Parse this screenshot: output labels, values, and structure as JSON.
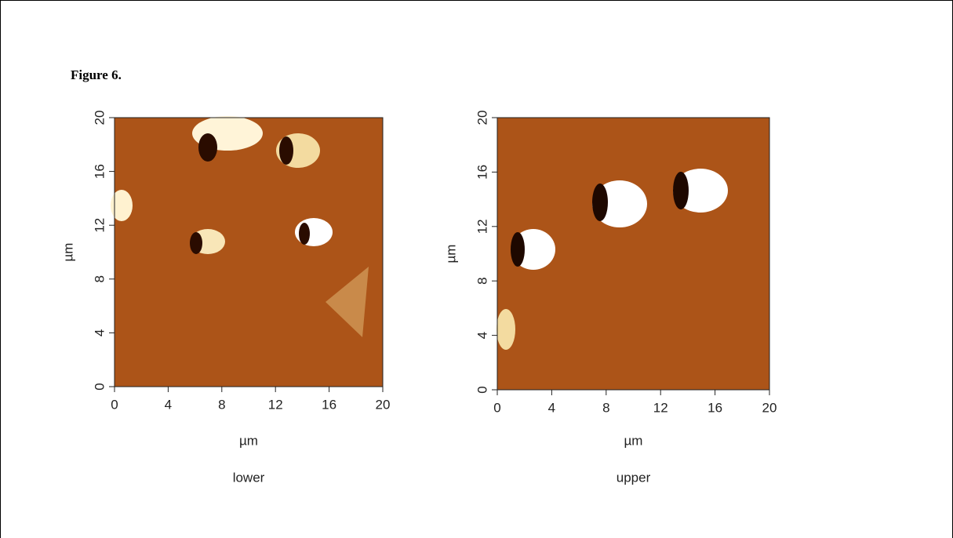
{
  "figure_label": "Figure 6.",
  "panels": [
    {
      "caption": "lower",
      "x_label": "µm",
      "y_label": "µm",
      "xlim": [
        0,
        20
      ],
      "ylim": [
        0,
        20
      ],
      "xticks": [
        0,
        4,
        8,
        12,
        16,
        20
      ],
      "yticks": [
        0,
        4,
        8,
        12,
        16,
        20
      ]
    },
    {
      "caption": "upper",
      "x_label": "µm",
      "y_label": "µm",
      "xlim": [
        0,
        20
      ],
      "ylim": [
        0,
        20
      ],
      "xticks": [
        0,
        4,
        8,
        12,
        16,
        20
      ],
      "yticks": [
        0,
        4,
        8,
        12,
        16,
        20
      ]
    }
  ]
}
